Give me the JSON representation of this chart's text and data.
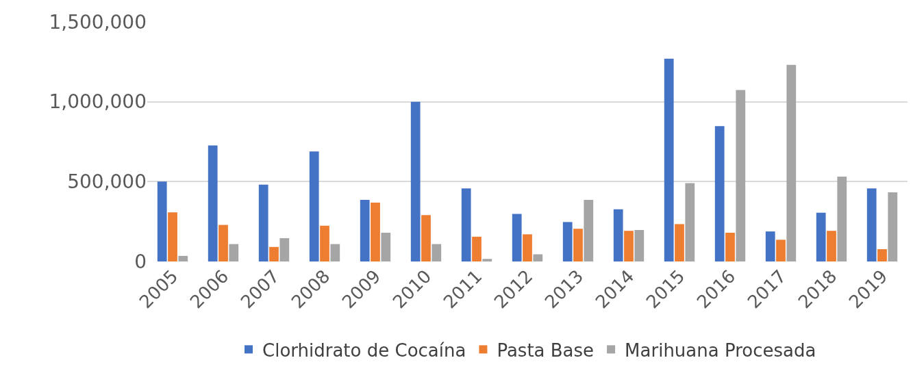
{
  "chart_data": {
    "type": "bar",
    "categories": [
      "2005",
      "2006",
      "2007",
      "2008",
      "2009",
      "2010",
      "2011",
      "2012",
      "2013",
      "2014",
      "2015",
      "2016",
      "2017",
      "2018",
      "2019"
    ],
    "series": [
      {
        "name": "Clorhidrato de Cocaína",
        "color": "#4472c4",
        "values": [
          500000,
          726000,
          481000,
          689000,
          386000,
          1000000,
          457000,
          298000,
          247000,
          327000,
          1270000,
          848000,
          188000,
          305000,
          457000
        ]
      },
      {
        "name": "Pasta Base",
        "color": "#ed7d31",
        "values": [
          308000,
          229000,
          91000,
          224000,
          369000,
          290000,
          155000,
          170000,
          205000,
          192000,
          234000,
          180000,
          136000,
          192000,
          77000
        ]
      },
      {
        "name": "Marihuana Procesada",
        "color": "#a5a5a5",
        "values": [
          35000,
          109000,
          146000,
          109000,
          180000,
          109000,
          16000,
          45000,
          386000,
          197000,
          491000,
          1074000,
          1231000,
          531000,
          433000
        ]
      }
    ],
    "ylim": [
      0,
      1500000
    ],
    "yticks": [
      {
        "value": 0,
        "label": "0"
      },
      {
        "value": 500000,
        "label": "500,000"
      },
      {
        "value": 1000000,
        "label": "1,000,000"
      },
      {
        "value": 1500000,
        "label": "1,500,000"
      }
    ],
    "grid": "y",
    "legend": "bottom"
  }
}
